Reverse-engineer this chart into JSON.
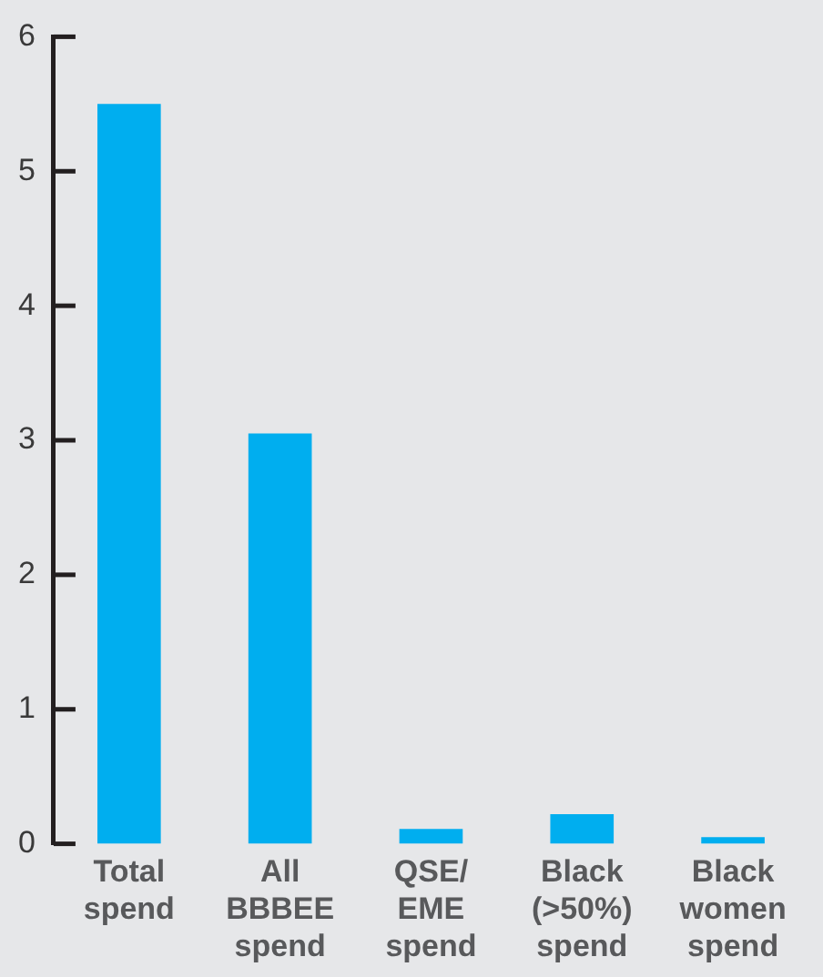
{
  "chart_data": {
    "type": "bar",
    "categories": [
      "Total spend",
      "All BBBEE spend",
      "QSE/ EME spend",
      "Black (>50%) spend",
      "Black women spend"
    ],
    "values": [
      5.5,
      3.05,
      0.11,
      0.22,
      0.05
    ],
    "color": "#00aeef",
    "ylim": [
      0,
      6
    ],
    "yticks": [
      0,
      1,
      2,
      3,
      4,
      5,
      6
    ],
    "grid": false,
    "legend": false
  }
}
